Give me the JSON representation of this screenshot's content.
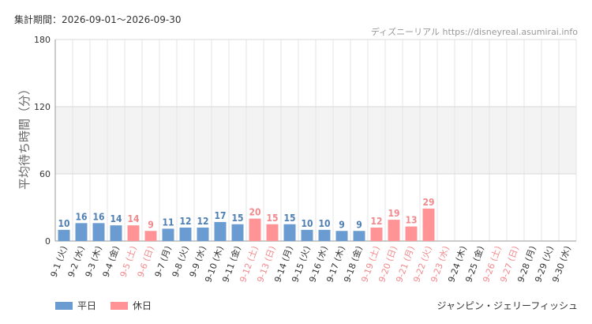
{
  "header": {
    "period": "集計期間：2026-09-01～2026-09-30",
    "credit": "ディズニーリアル https://disneyreal.asumirai.info"
  },
  "attraction": "ジャンピン・ジェリーフィッシュ",
  "colors": {
    "weekday": "#6a9bd1",
    "holiday": "#ff9396",
    "weekday_text": "#4f7fb3",
    "holiday_text": "#f08a8d"
  },
  "chart_data": {
    "type": "bar",
    "ylabel": "平均待ち時間（分）",
    "ylim": [
      0,
      180
    ],
    "yticks": [
      0,
      60,
      120,
      180
    ],
    "grid": true,
    "legend_position": "bottom-left",
    "categories": [
      "9-1 (火)",
      "9-2 (水)",
      "9-3 (木)",
      "9-4 (金)",
      "9-5 (土)",
      "9-6 (日)",
      "9-7 (月)",
      "9-8 (火)",
      "9-9 (水)",
      "9-10 (木)",
      "9-11 (金)",
      "9-12 (土)",
      "9-13 (日)",
      "9-14 (月)",
      "9-15 (火)",
      "9-16 (水)",
      "9-17 (木)",
      "9-18 (金)",
      "9-19 (土)",
      "9-20 (日)",
      "9-21 (月)",
      "9-22 (火)",
      "9-23 (水)",
      "9-24 (木)",
      "9-25 (金)",
      "9-26 (土)",
      "9-27 (日)",
      "9-28 (月)",
      "9-29 (火)",
      "9-30 (水)"
    ],
    "day_types": [
      "weekday",
      "weekday",
      "weekday",
      "weekday",
      "holiday",
      "holiday",
      "weekday",
      "weekday",
      "weekday",
      "weekday",
      "weekday",
      "holiday",
      "holiday",
      "weekday",
      "weekday",
      "weekday",
      "weekday",
      "weekday",
      "holiday",
      "holiday",
      "holiday",
      "holiday",
      "holiday",
      "weekday",
      "weekday",
      "holiday",
      "holiday",
      "weekday",
      "weekday",
      "weekday"
    ],
    "series": [
      {
        "name": "平日",
        "values": [
          10,
          16,
          16,
          14,
          null,
          null,
          11,
          12,
          12,
          17,
          15,
          null,
          null,
          15,
          10,
          10,
          9,
          9,
          null,
          null,
          null,
          null,
          null,
          null,
          null,
          null,
          null,
          null,
          null,
          null
        ]
      },
      {
        "name": "休日",
        "values": [
          null,
          null,
          null,
          null,
          14,
          9,
          null,
          null,
          null,
          null,
          null,
          20,
          15,
          null,
          null,
          null,
          null,
          null,
          12,
          19,
          13,
          29,
          null,
          null,
          null,
          null,
          null,
          null,
          null,
          null
        ]
      }
    ]
  }
}
